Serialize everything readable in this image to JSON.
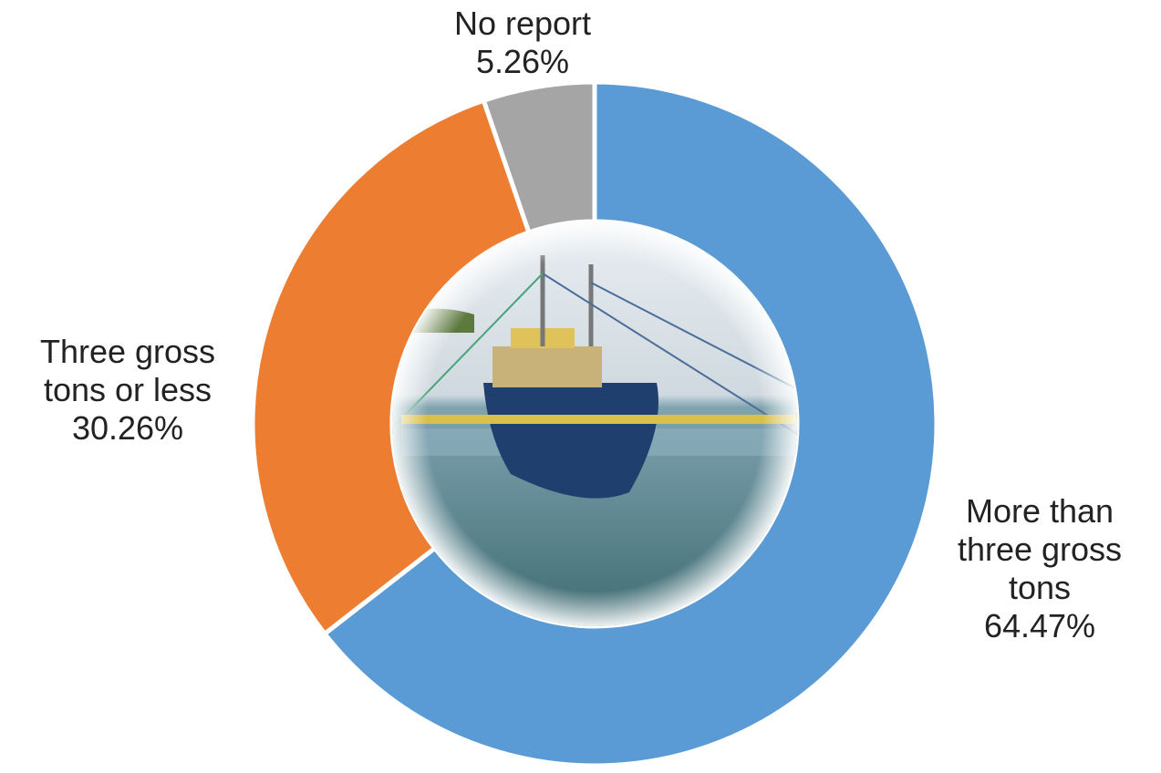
{
  "chart_data": {
    "type": "donut",
    "categories": [
      "More than three gross tons",
      "Three gross tons or less",
      "No report"
    ],
    "values": [
      64.47,
      30.26,
      5.26
    ],
    "value_labels": [
      "64.47%",
      "30.26%",
      "5.26%"
    ],
    "colors": [
      "#5b9bd5",
      "#ed7d31",
      "#a5a5a5"
    ]
  }
}
